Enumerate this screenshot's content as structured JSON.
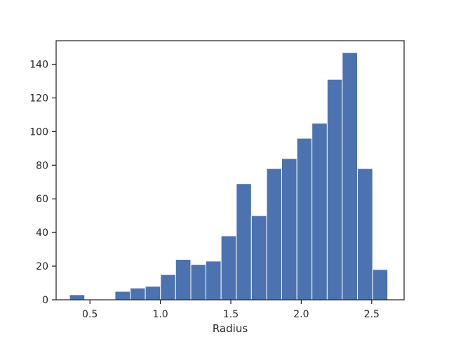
{
  "chart_data": {
    "type": "bar",
    "title": "",
    "xlabel": "Radius",
    "ylabel": "",
    "xlim": [
      0.26,
      2.73
    ],
    "ylim": [
      0,
      154
    ],
    "xticks": [
      0.5,
      1.0,
      1.5,
      2.0,
      2.5
    ],
    "xtick_labels": [
      "0.5",
      "1.0",
      "1.5",
      "2.0",
      "2.5"
    ],
    "yticks": [
      0,
      20,
      40,
      60,
      80,
      100,
      120,
      140
    ],
    "ytick_labels": [
      "0",
      "20",
      "40",
      "60",
      "80",
      "100",
      "120",
      "140"
    ],
    "grid": false,
    "legend": "none",
    "bar_color": "#4c72b0",
    "edge_color": "#ffffff",
    "bins": [
      {
        "x0": 0.355,
        "x1": 0.463,
        "count": 3
      },
      {
        "x0": 0.463,
        "x1": 0.57,
        "count": 0
      },
      {
        "x0": 0.57,
        "x1": 0.678,
        "count": 0
      },
      {
        "x0": 0.678,
        "x1": 0.786,
        "count": 5
      },
      {
        "x0": 0.786,
        "x1": 0.893,
        "count": 7
      },
      {
        "x0": 0.893,
        "x1": 1.001,
        "count": 8
      },
      {
        "x0": 1.001,
        "x1": 1.108,
        "count": 15
      },
      {
        "x0": 1.108,
        "x1": 1.216,
        "count": 24
      },
      {
        "x0": 1.216,
        "x1": 1.323,
        "count": 21
      },
      {
        "x0": 1.323,
        "x1": 1.431,
        "count": 23
      },
      {
        "x0": 1.431,
        "x1": 1.539,
        "count": 38
      },
      {
        "x0": 1.539,
        "x1": 1.646,
        "count": 69
      },
      {
        "x0": 1.646,
        "x1": 1.754,
        "count": 50
      },
      {
        "x0": 1.754,
        "x1": 1.861,
        "count": 78
      },
      {
        "x0": 1.861,
        "x1": 1.969,
        "count": 84
      },
      {
        "x0": 1.969,
        "x1": 2.076,
        "count": 96
      },
      {
        "x0": 2.076,
        "x1": 2.184,
        "count": 105
      },
      {
        "x0": 2.184,
        "x1": 2.291,
        "count": 131
      },
      {
        "x0": 2.291,
        "x1": 2.399,
        "count": 147
      },
      {
        "x0": 2.399,
        "x1": 2.507,
        "count": 78
      },
      {
        "x0": 2.507,
        "x1": 2.614,
        "count": 18
      }
    ]
  }
}
